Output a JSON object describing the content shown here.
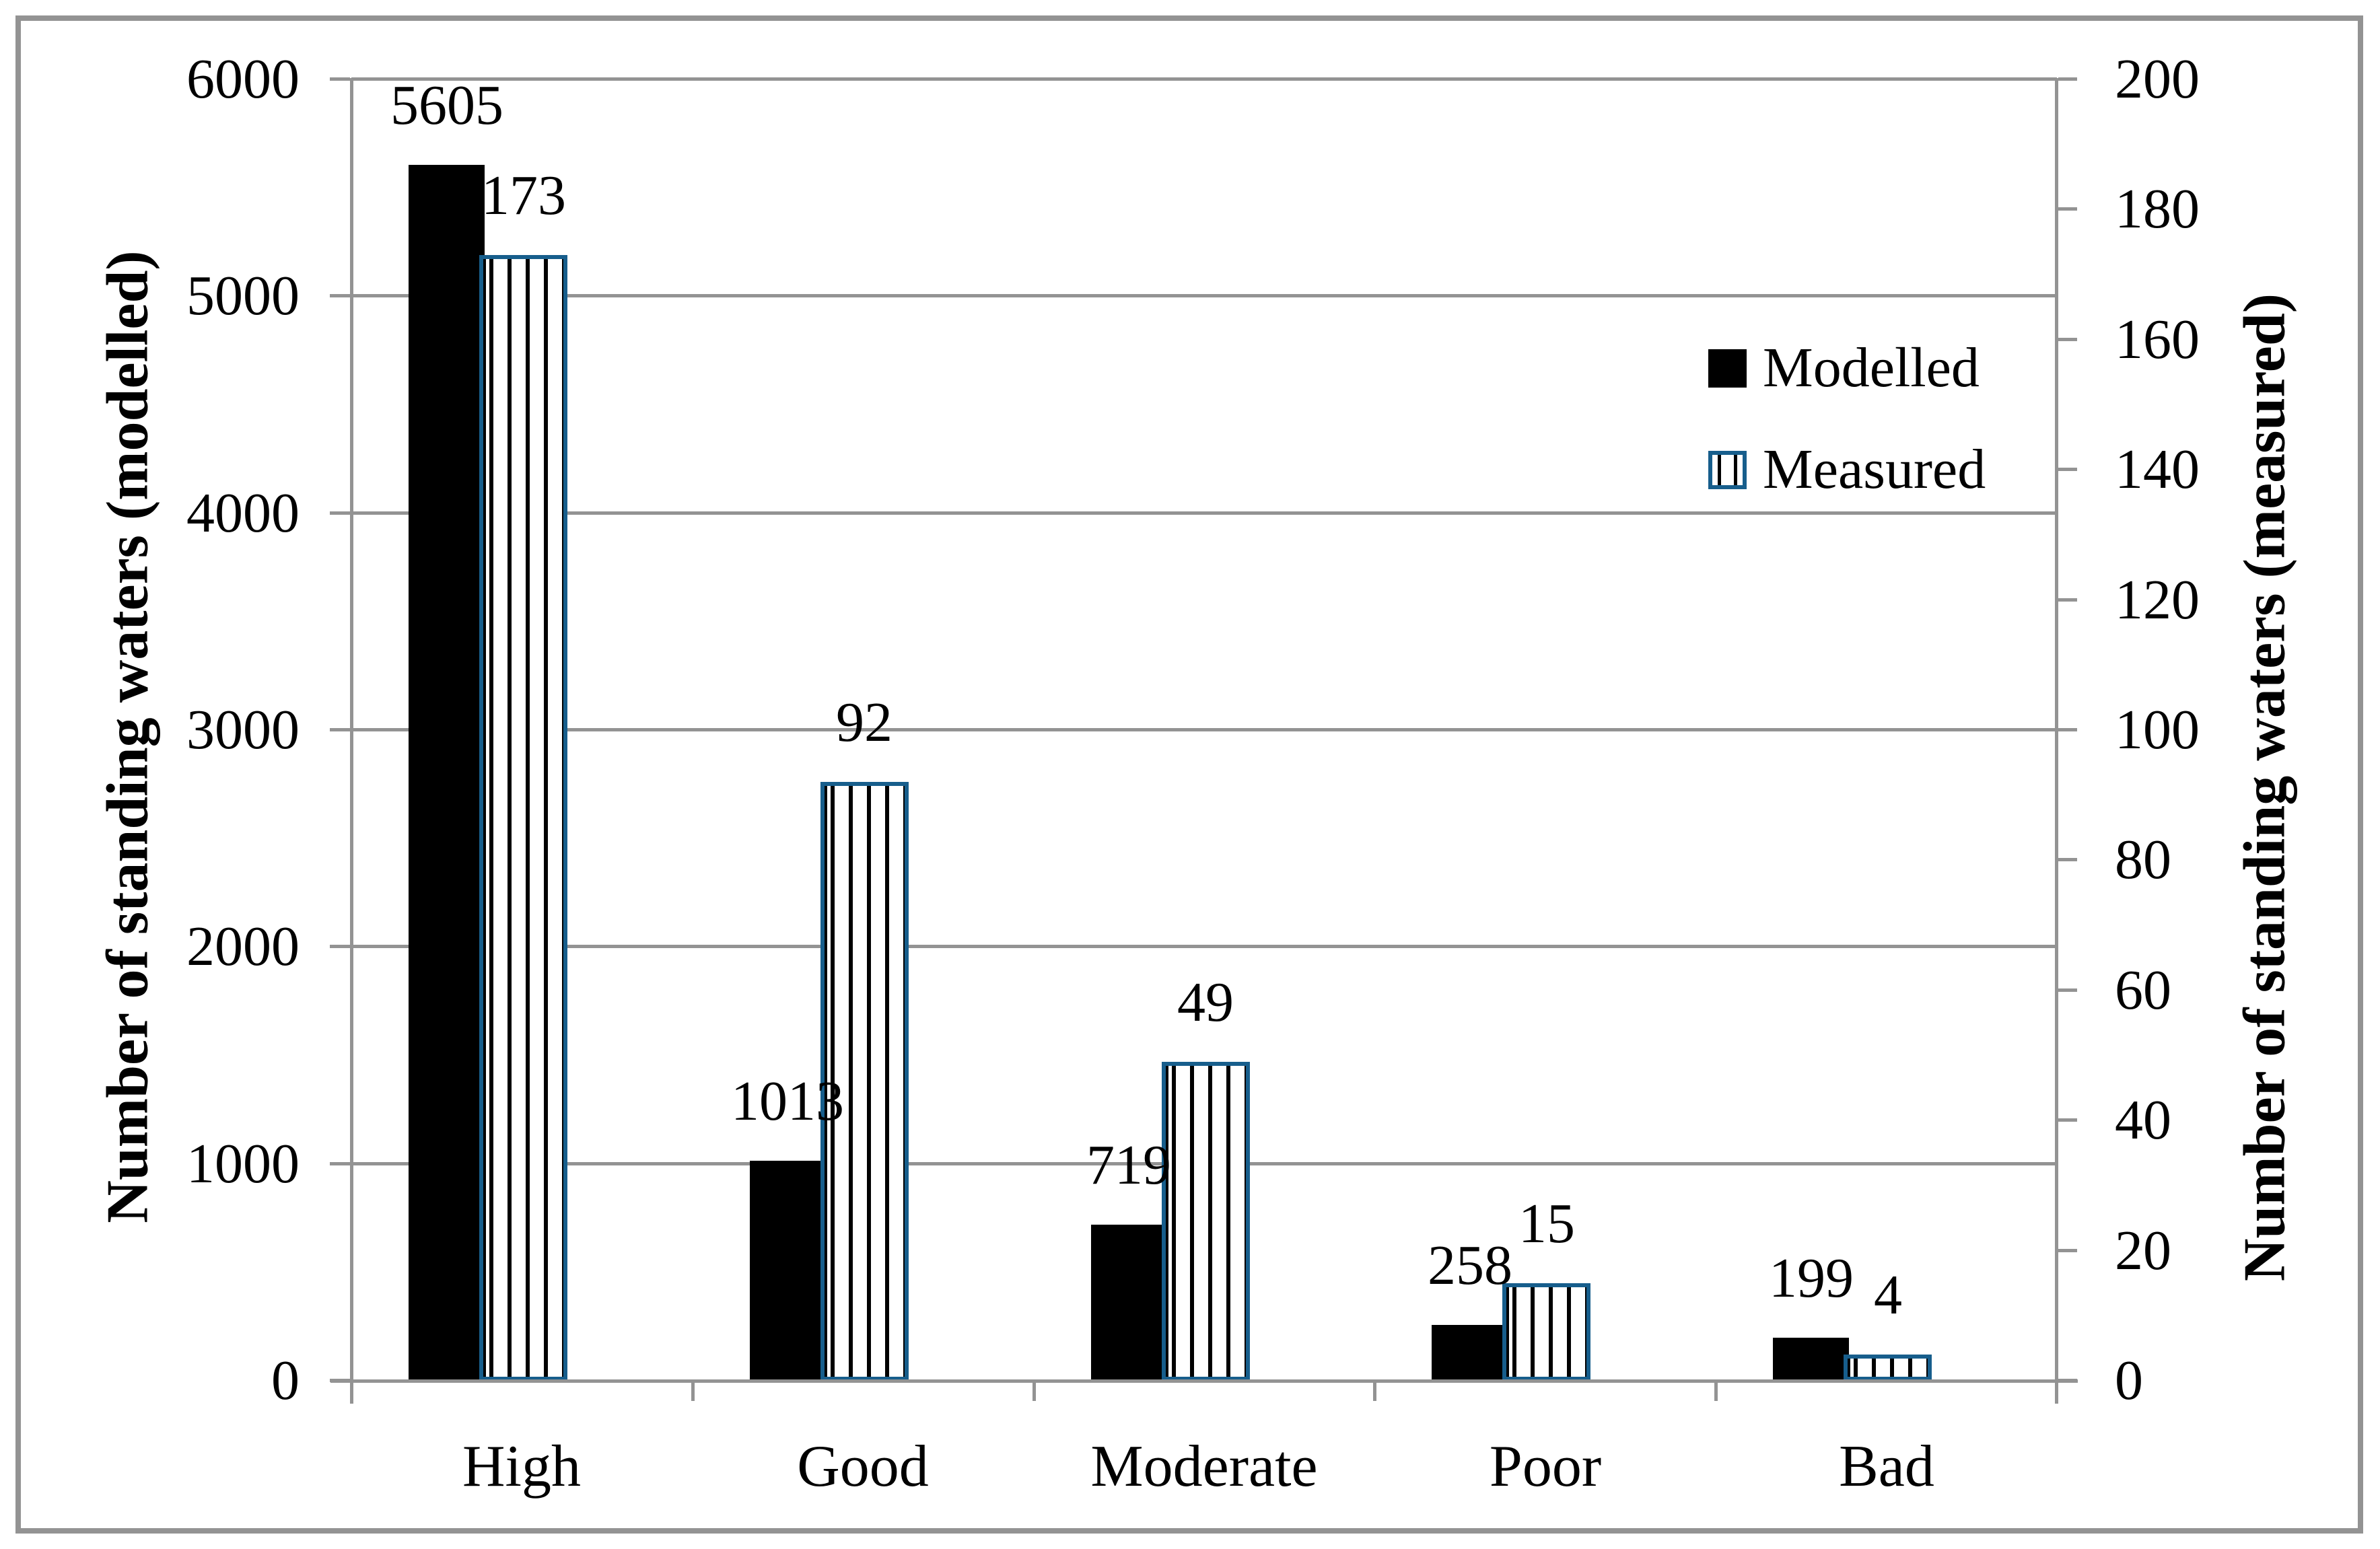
{
  "chart_data": {
    "type": "bar",
    "categories": [
      "High",
      "Good",
      "Moderate",
      "Poor",
      "Bad"
    ],
    "series": [
      {
        "name": "Modelled",
        "axis": "left",
        "style": "solid-black",
        "values": [
          5605,
          1013,
          719,
          258,
          199
        ]
      },
      {
        "name": "Measured",
        "axis": "right",
        "style": "white-with-black-vertical-stripes-blue-border",
        "values": [
          173,
          92,
          49,
          15,
          4
        ]
      }
    ],
    "left_axis": {
      "label": "Number of standing waters (modelled)",
      "min": 0,
      "max": 6000,
      "tick_step": 1000,
      "ticks": [
        0,
        1000,
        2000,
        3000,
        4000,
        5000,
        6000
      ]
    },
    "right_axis": {
      "label": "Number of standing waters (measured)",
      "min": 0,
      "max": 200,
      "tick_step": 20,
      "ticks": [
        0,
        20,
        40,
        60,
        80,
        100,
        120,
        140,
        160,
        180,
        200
      ]
    },
    "data_labels_shown": true,
    "legend": {
      "position": "inside-right-upper",
      "entries": [
        "Modelled",
        "Measured"
      ]
    },
    "grid": {
      "horizontal_major_gridlines": true,
      "vertical_gridlines": false
    },
    "colors": {
      "modelled_fill": "#000000",
      "measured_border": "#175E8C",
      "measured_stripe": "#000000",
      "line_gray": "#939393",
      "text": "#000000",
      "background": "#FFFFFF"
    }
  }
}
